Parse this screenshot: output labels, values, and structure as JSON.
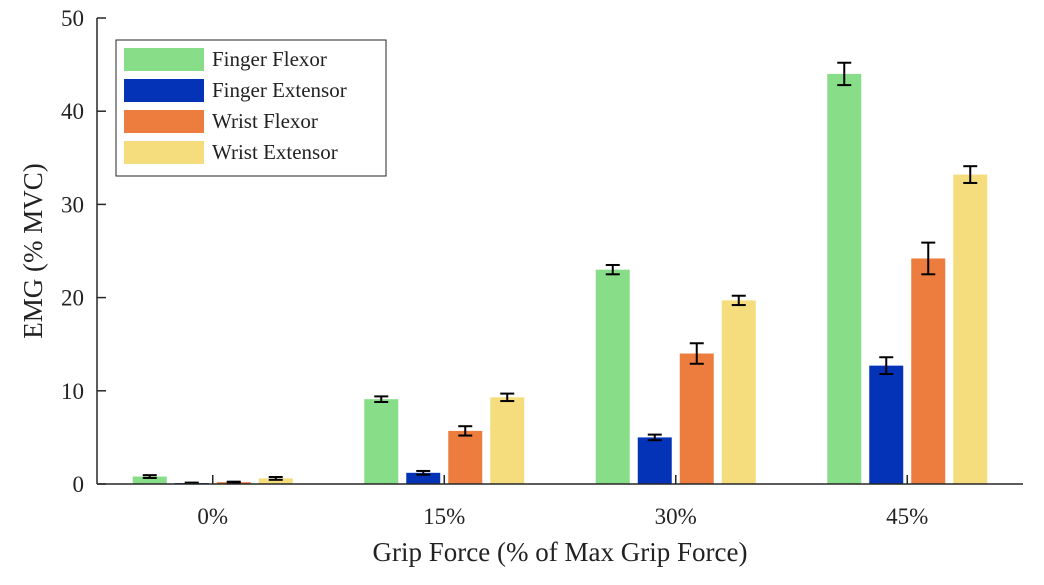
{
  "chart_data": {
    "type": "bar",
    "categories": [
      "0%",
      "15%",
      "30%",
      "45%"
    ],
    "xlabel": "Grip Force (% of Max Grip Force)",
    "ylabel": "EMG (% MVC)",
    "ylim": [
      0,
      50
    ],
    "yticks": [
      0,
      10,
      20,
      30,
      40,
      50
    ],
    "grid": false,
    "legend": "top-left",
    "series": [
      {
        "name": "Finger Flexor",
        "color": "#88dd88",
        "values": [
          0.8,
          9.1,
          23.0,
          44.0
        ],
        "errors": [
          0.15,
          0.3,
          0.5,
          1.2
        ]
      },
      {
        "name": "Finger Extensor",
        "color": "#0433b8",
        "values": [
          0.1,
          1.2,
          5.0,
          12.7
        ],
        "errors": [
          0.05,
          0.2,
          0.3,
          0.9
        ]
      },
      {
        "name": "Wrist Flexor",
        "color": "#ed7d3f",
        "values": [
          0.2,
          5.7,
          14.0,
          24.2
        ],
        "errors": [
          0.05,
          0.5,
          1.1,
          1.7
        ]
      },
      {
        "name": "Wrist Extensor",
        "color": "#f5dc7c",
        "values": [
          0.6,
          9.3,
          19.7,
          33.2
        ],
        "errors": [
          0.15,
          0.4,
          0.5,
          0.9
        ]
      }
    ]
  }
}
